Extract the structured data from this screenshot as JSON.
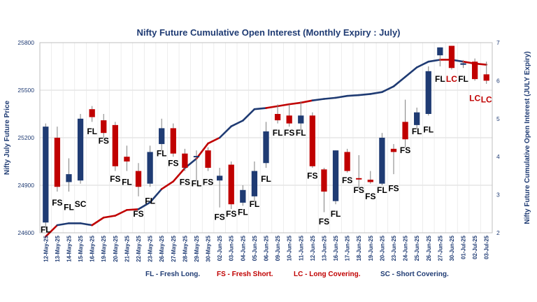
{
  "chart_data": {
    "type": "candlestick+line",
    "title": "Nifty Future Cumulative Open Interest (Monthly Expiry : July)",
    "ylabel_left": "Nifty July Future Price",
    "ylabel_right": "Nifty Future Cumulative Open Interest (JULY Expiry)",
    "ylim_left": [
      24600,
      25800
    ],
    "yticks_left": [
      "24600",
      "24900",
      "25200",
      "25500",
      "25800"
    ],
    "ylim_right": [
      2,
      7
    ],
    "yticks_right": [
      "2",
      "3",
      "4",
      "5",
      "6",
      "7"
    ],
    "grid": true,
    "categories": [
      "12-May-25",
      "13-May-25",
      "14-May-25",
      "15-May-25",
      "16-May-25",
      "19-May-25",
      "20-May-25",
      "21-May-25",
      "22-May-25",
      "23-May-25",
      "26-May-25",
      "27-May-25",
      "28-May-25",
      "29-May-25",
      "30-May-25",
      "02-Jun-25",
      "03-Jun-25",
      "04-Jun-25",
      "05-Jun-25",
      "06-Jun-25",
      "09-Jun-25",
      "10-Jun-25",
      "11-Jun-25",
      "12-Jun-25",
      "13-Jun-25",
      "16-Jun-25",
      "17-Jun-25",
      "18-Jun-25",
      "19-Jun-25",
      "20-Jun-25",
      "23-Jun-25",
      "24-Jun-25",
      "25-Jun-25",
      "26-Jun-25",
      "27-Jun-25",
      "30-Jun-25",
      "01-Jul-25",
      "02-Jul-25",
      "03-Jul-25"
    ],
    "candles": [
      {
        "o": 24665,
        "h": 25290,
        "l": 24625,
        "c": 25270
      },
      {
        "o": 25200,
        "h": 25270,
        "l": 24860,
        "c": 24890
      },
      {
        "o": 24920,
        "h": 25070,
        "l": 24860,
        "c": 24970
      },
      {
        "o": 24930,
        "h": 25350,
        "l": 24910,
        "c": 25320
      },
      {
        "o": 25380,
        "h": 25400,
        "l": 25300,
        "c": 25330
      },
      {
        "o": 25310,
        "h": 25350,
        "l": 25200,
        "c": 25230
      },
      {
        "o": 25280,
        "h": 25300,
        "l": 24990,
        "c": 25020
      },
      {
        "o": 25080,
        "h": 25150,
        "l": 24990,
        "c": 25050
      },
      {
        "o": 24990,
        "h": 25040,
        "l": 24830,
        "c": 24890
      },
      {
        "o": 24910,
        "h": 25150,
        "l": 24890,
        "c": 25110
      },
      {
        "o": 25160,
        "h": 25320,
        "l": 25120,
        "c": 25260
      },
      {
        "o": 25260,
        "h": 25290,
        "l": 25080,
        "c": 25100
      },
      {
        "o": 25100,
        "h": 25130,
        "l": 24990,
        "c": 25010
      },
      {
        "o": 25085,
        "h": 25120,
        "l": 24930,
        "c": 25080
      },
      {
        "o": 25120,
        "h": 25140,
        "l": 24990,
        "c": 25010
      },
      {
        "o": 24930,
        "h": 25010,
        "l": 24760,
        "c": 24960
      },
      {
        "o": 25030,
        "h": 25050,
        "l": 24750,
        "c": 24780
      },
      {
        "o": 24790,
        "h": 24900,
        "l": 24770,
        "c": 24870
      },
      {
        "o": 24830,
        "h": 25050,
        "l": 24800,
        "c": 24990
      },
      {
        "o": 25040,
        "h": 25300,
        "l": 25010,
        "c": 25240
      },
      {
        "o": 25350,
        "h": 25410,
        "l": 25290,
        "c": 25310
      },
      {
        "o": 25340,
        "h": 25410,
        "l": 25270,
        "c": 25290
      },
      {
        "o": 25290,
        "h": 25430,
        "l": 25250,
        "c": 25340
      },
      {
        "o": 25340,
        "h": 25360,
        "l": 25010,
        "c": 25020
      },
      {
        "o": 25000,
        "h": 25010,
        "l": 24730,
        "c": 24860
      },
      {
        "o": 24800,
        "h": 25120,
        "l": 24780,
        "c": 25120
      },
      {
        "o": 25110,
        "h": 25130,
        "l": 24980,
        "c": 24990
      },
      {
        "o": 24945,
        "h": 25090,
        "l": 24880,
        "c": 24940
      },
      {
        "o": 24935,
        "h": 24990,
        "l": 24910,
        "c": 24920
      },
      {
        "o": 24910,
        "h": 25230,
        "l": 24900,
        "c": 25200
      },
      {
        "o": 25130,
        "h": 25160,
        "l": 24970,
        "c": 25110
      },
      {
        "o": 25190,
        "h": 25440,
        "l": 25140,
        "c": 25300
      },
      {
        "o": 25280,
        "h": 25390,
        "l": 25260,
        "c": 25360
      },
      {
        "o": 25350,
        "h": 25650,
        "l": 25340,
        "c": 25620
      },
      {
        "o": 25720,
        "h": 25770,
        "l": 25650,
        "c": 25770
      },
      {
        "o": 25780,
        "h": 25780,
        "l": 25630,
        "c": 25640
      },
      {
        "o": 25660,
        "h": 25690,
        "l": 25640,
        "c": 25670
      },
      {
        "o": 25680,
        "h": 25700,
        "l": 25560,
        "c": 25570
      },
      {
        "o": 25600,
        "h": 25680,
        "l": 25540,
        "c": 25560
      }
    ],
    "candle_colors": [
      "#1f3b73",
      "#c00000",
      "#1f3b73",
      "#1f3b73",
      "#c00000",
      "#c00000",
      "#c00000",
      "#c00000",
      "#c00000",
      "#1f3b73",
      "#1f3b73",
      "#c00000",
      "#c00000",
      "#1f3b73",
      "#c00000",
      "#1f3b73",
      "#c00000",
      "#1f3b73",
      "#1f3b73",
      "#1f3b73",
      "#c00000",
      "#c00000",
      "#1f3b73",
      "#c00000",
      "#c00000",
      "#1f3b73",
      "#c00000",
      "#c00000",
      "#c00000",
      "#1f3b73",
      "#c00000",
      "#c00000",
      "#1f3b73",
      "#1f3b73",
      "#1f3b73",
      "#c00000",
      "#1f3b73",
      "#c00000",
      "#c00000"
    ],
    "oi_series": [
      1.9,
      2.2,
      2.25,
      2.25,
      2.2,
      2.4,
      2.45,
      2.6,
      2.62,
      2.8,
      3.15,
      3.35,
      3.7,
      3.95,
      4.35,
      4.5,
      4.8,
      4.95,
      5.25,
      5.28,
      5.33,
      5.38,
      5.42,
      5.48,
      5.52,
      5.55,
      5.6,
      5.62,
      5.65,
      5.7,
      5.85,
      6.1,
      6.35,
      6.5,
      6.55,
      6.55,
      6.5,
      6.45,
      6.42
    ],
    "oi_colors": [
      "#c00000",
      "#1f3b73",
      "#1f3b73",
      "#1f3b73",
      "#c00000",
      "#c00000",
      "#c00000",
      "#c00000",
      "#1f3b73",
      "#1f3b73",
      "#c00000",
      "#c00000",
      "#1f3b73",
      "#c00000",
      "#c00000",
      "#1f3b73",
      "#1f3b73",
      "#1f3b73",
      "#1f3b73",
      "#c00000",
      "#c00000",
      "#c00000",
      "#c00000",
      "#1f3b73",
      "#1f3b73",
      "#1f3b73",
      "#1f3b73",
      "#1f3b73",
      "#1f3b73",
      "#1f3b73",
      "#1f3b73",
      "#1f3b73",
      "#1f3b73",
      "#1f3b73",
      "#c00000",
      "#1f3b73",
      "#c00000",
      "#c00000",
      "#c00000"
    ],
    "annotations": [
      {
        "i": 0,
        "text": "FL",
        "value": 24620,
        "color": "#000000"
      },
      {
        "i": 1,
        "text": "FS",
        "value": 24790,
        "color": "#000000"
      },
      {
        "i": 2,
        "text": "FL",
        "value": 24760,
        "color": "#000000"
      },
      {
        "i": 3,
        "text": "SC",
        "value": 24780,
        "color": "#000000"
      },
      {
        "i": 4,
        "text": "FL",
        "value": 25240,
        "color": "#000000"
      },
      {
        "i": 5,
        "text": "FS",
        "value": 25180,
        "color": "#000000"
      },
      {
        "i": 6,
        "text": "FS",
        "value": 24940,
        "color": "#000000"
      },
      {
        "i": 7,
        "text": "FL",
        "value": 24920,
        "color": "#000000"
      },
      {
        "i": 8,
        "text": "FS",
        "value": 24720,
        "color": "#000000"
      },
      {
        "i": 9,
        "text": "FL",
        "value": 24800,
        "color": "#000000"
      },
      {
        "i": 10,
        "text": "FL",
        "value": 25100,
        "color": "#000000"
      },
      {
        "i": 11,
        "text": "FS",
        "value": 25040,
        "color": "#000000"
      },
      {
        "i": 12,
        "text": "FS",
        "value": 24920,
        "color": "#000000"
      },
      {
        "i": 13,
        "text": "FL",
        "value": 24910,
        "color": "#000000"
      },
      {
        "i": 14,
        "text": "FS",
        "value": 24920,
        "color": "#000000"
      },
      {
        "i": 15,
        "text": "FS",
        "value": 24700,
        "color": "#000000"
      },
      {
        "i": 16,
        "text": "FS",
        "value": 24720,
        "color": "#000000"
      },
      {
        "i": 17,
        "text": "FL",
        "value": 24730,
        "color": "#000000"
      },
      {
        "i": 18,
        "text": "FL",
        "value": 24780,
        "color": "#000000"
      },
      {
        "i": 19,
        "text": "FL",
        "value": 24940,
        "color": "#000000"
      },
      {
        "i": 20,
        "text": "FL",
        "value": 25230,
        "color": "#000000"
      },
      {
        "i": 21,
        "text": "FS",
        "value": 25230,
        "color": "#000000"
      },
      {
        "i": 22,
        "text": "FL",
        "value": 25230,
        "color": "#000000"
      },
      {
        "i": 23,
        "text": "FS",
        "value": 24960,
        "color": "#000000"
      },
      {
        "i": 24,
        "text": "FS",
        "value": 24670,
        "color": "#000000"
      },
      {
        "i": 25,
        "text": "FL",
        "value": 24720,
        "color": "#000000"
      },
      {
        "i": 26,
        "text": "FS",
        "value": 24930,
        "color": "#000000"
      },
      {
        "i": 27,
        "text": "FS",
        "value": 24870,
        "color": "#000000"
      },
      {
        "i": 28,
        "text": "FS",
        "value": 24830,
        "color": "#000000"
      },
      {
        "i": 29,
        "text": "FL",
        "value": 24870,
        "color": "#000000"
      },
      {
        "i": 30,
        "text": "FS",
        "value": 24880,
        "color": "#000000"
      },
      {
        "i": 31,
        "text": "FS",
        "value": 25120,
        "color": "#000000"
      },
      {
        "i": 32,
        "text": "FL",
        "value": 25240,
        "color": "#000000"
      },
      {
        "i": 33,
        "text": "FL",
        "value": 25250,
        "color": "#000000"
      },
      {
        "i": 34,
        "text": "FL",
        "value": 25570,
        "color": "#000000"
      },
      {
        "i": 35,
        "text": "LC",
        "value": 25570,
        "color": "#c00000"
      },
      {
        "i": 36,
        "text": "FL",
        "value": 25570,
        "color": "#000000"
      },
      {
        "i": 37,
        "text": "LC",
        "value": 25450,
        "color": "#c00000"
      },
      {
        "i": 38,
        "text": "LC",
        "value": 25440,
        "color": "#c00000"
      }
    ],
    "legend": [
      {
        "text": "FL - Fresh Long.",
        "color": "#1f3b73"
      },
      {
        "text": "FS - Fresh Short.",
        "color": "#c00000"
      },
      {
        "text": "LC - Long Covering.",
        "color": "#c00000"
      },
      {
        "text": "SC - Short Covering.",
        "color": "#1f3b73"
      }
    ]
  }
}
